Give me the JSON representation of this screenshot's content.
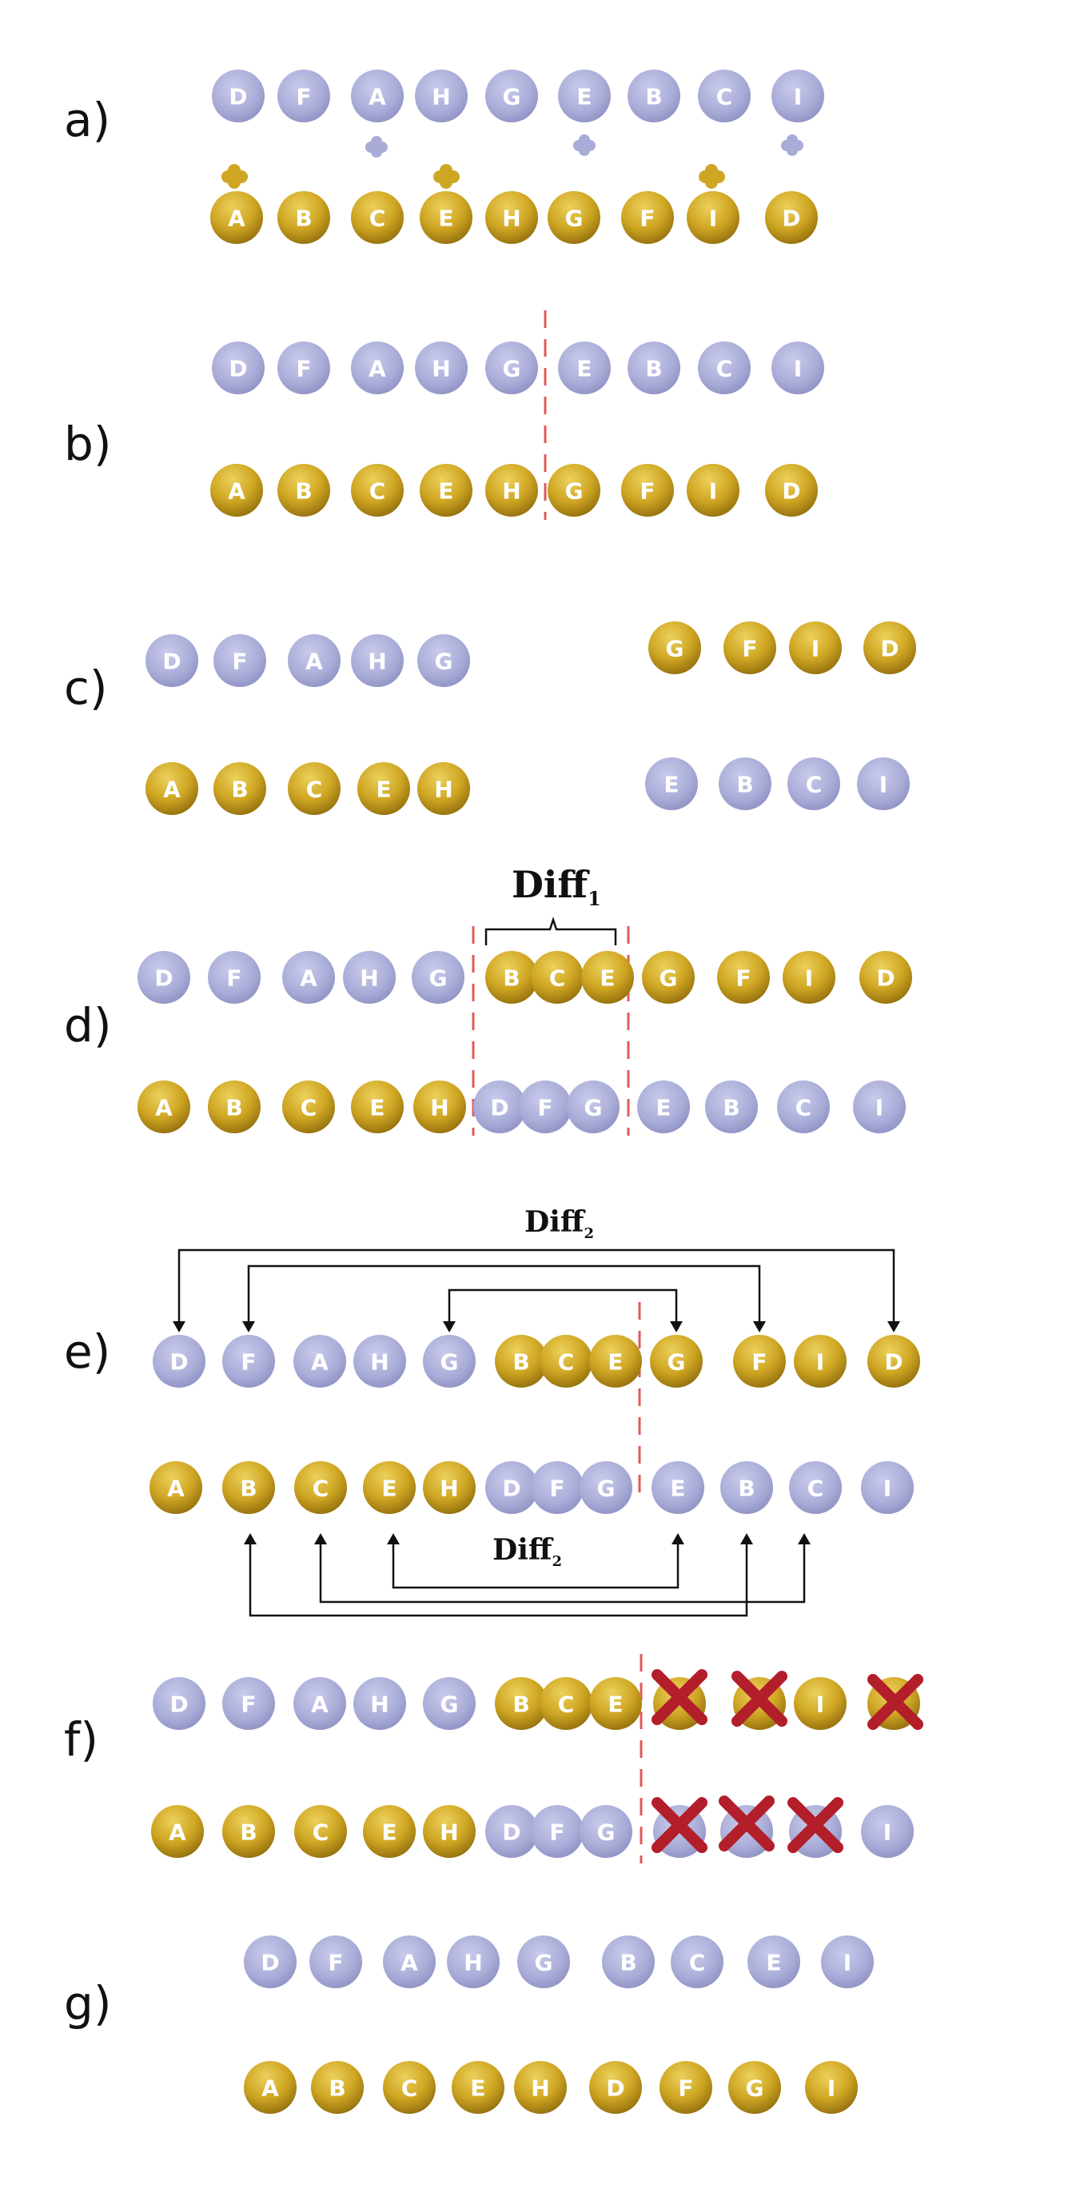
{
  "colors": {
    "purple": "#a9acd7",
    "purple_dark": "#8d90c2",
    "gold": "#cfa623",
    "gold_dark": "#a07c12",
    "separator": "#e05a5a",
    "cross": "#b21e2a"
  },
  "steps": {
    "a": {
      "label": "a)",
      "top": [
        "D",
        "F",
        "A",
        "H",
        "G",
        "E",
        "B",
        "C",
        "I"
      ],
      "bottom": [
        "A",
        "B",
        "C",
        "E",
        "H",
        "G",
        "F",
        "I",
        "D"
      ]
    },
    "b": {
      "label": "b)",
      "top": [
        "D",
        "F",
        "A",
        "H",
        "G",
        "E",
        "B",
        "C",
        "I"
      ],
      "bottom": [
        "A",
        "B",
        "C",
        "E",
        "H",
        "G",
        "F",
        "I",
        "D"
      ]
    },
    "c": {
      "label": "c)",
      "top_left": [
        "D",
        "F",
        "A",
        "H",
        "G"
      ],
      "top_right": [
        "G",
        "F",
        "I",
        "D"
      ],
      "bottom_left": [
        "A",
        "B",
        "C",
        "E",
        "H"
      ],
      "bottom_right": [
        "E",
        "B",
        "C",
        "I"
      ]
    },
    "d": {
      "label": "d)",
      "diff_label": "Diff",
      "diff_sub": "1",
      "top": [
        "D",
        "F",
        "A",
        "H",
        "G",
        "B",
        "C",
        "E",
        "G",
        "F",
        "I",
        "D"
      ],
      "bottom": [
        "A",
        "B",
        "C",
        "E",
        "H",
        "D",
        "F",
        "G",
        "E",
        "B",
        "C",
        "I"
      ]
    },
    "e": {
      "label": "e)",
      "diff_label": "Diff",
      "diff_sub": "2",
      "top": [
        "D",
        "F",
        "A",
        "H",
        "G",
        "B",
        "C",
        "E",
        "G",
        "F",
        "I",
        "D"
      ],
      "bottom": [
        "A",
        "B",
        "C",
        "E",
        "H",
        "D",
        "F",
        "G",
        "E",
        "B",
        "C",
        "I"
      ]
    },
    "f": {
      "label": "f)",
      "top": [
        "D",
        "F",
        "A",
        "H",
        "G",
        "B",
        "C",
        "E",
        "",
        "",
        "I",
        ""
      ],
      "bottom": [
        "A",
        "B",
        "C",
        "E",
        "H",
        "D",
        "F",
        "G",
        "",
        "",
        "",
        "I"
      ]
    },
    "g": {
      "label": "g)",
      "top": [
        "D",
        "F",
        "A",
        "H",
        "G",
        "B",
        "C",
        "E",
        "I"
      ],
      "bottom": [
        "A",
        "B",
        "C",
        "E",
        "H",
        "D",
        "F",
        "G",
        "I"
      ]
    }
  }
}
